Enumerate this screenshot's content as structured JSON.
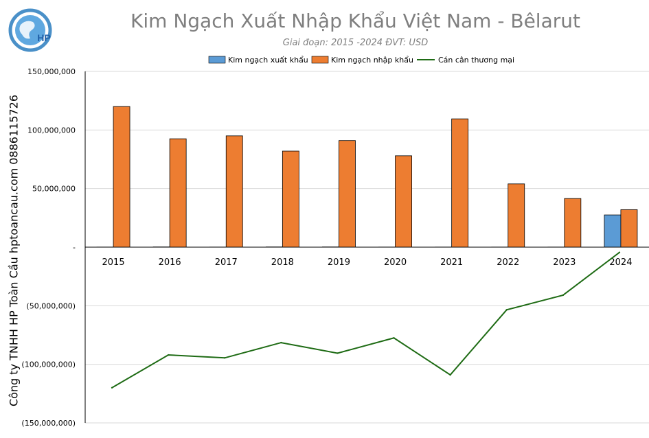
{
  "watermark": "Công ty TNHH HP Toàn Cầu hptoancau.com 0886115726",
  "logo": {
    "text": "HP",
    "icon": "globe-logo-icon"
  },
  "colors": {
    "export": "#5b9bd5",
    "import": "#ed7d31",
    "balance": "#1e6b14",
    "title": "#7f7f7f"
  },
  "chart_data": {
    "type": "bar",
    "title": "Kim Ngạch Xuất Nhập Khẩu Việt Nam - Bêlarut",
    "subtitle": "Giai đoạn: 2015 -2024  ĐVT: USD",
    "categories": [
      "2015",
      "2016",
      "2017",
      "2018",
      "2019",
      "2020",
      "2021",
      "2022",
      "2023",
      "2024"
    ],
    "series": [
      {
        "name": "Kim ngạch xuất khẩu",
        "type": "bar",
        "values": [
          100000,
          200000,
          100000,
          200000,
          200000,
          100000,
          100000,
          100000,
          100000,
          27500000
        ]
      },
      {
        "name": "Kim ngạch nhập khẩu",
        "type": "bar",
        "values": [
          120000000,
          92500000,
          95000000,
          82000000,
          91000000,
          78000000,
          109500000,
          54000000,
          41500000,
          32000000
        ]
      },
      {
        "name": "Cán cân thương mại",
        "type": "line",
        "values": [
          -120000000,
          -92000000,
          -94500000,
          -81500000,
          -90500000,
          -77500000,
          -109000000,
          -53500000,
          -41000000,
          -4500000
        ]
      }
    ],
    "ylim": [
      -150000000,
      150000000
    ],
    "yticks": [
      150000000,
      100000000,
      50000000,
      0,
      -50000000,
      -100000000,
      -150000000
    ],
    "ytick_labels": [
      "150,000,000",
      "100,000,000",
      "50,000,000",
      "-",
      "(50,000,000)",
      "(100,000,000)",
      "(150,000,000)"
    ],
    "legend_position": "top",
    "grid": true
  }
}
